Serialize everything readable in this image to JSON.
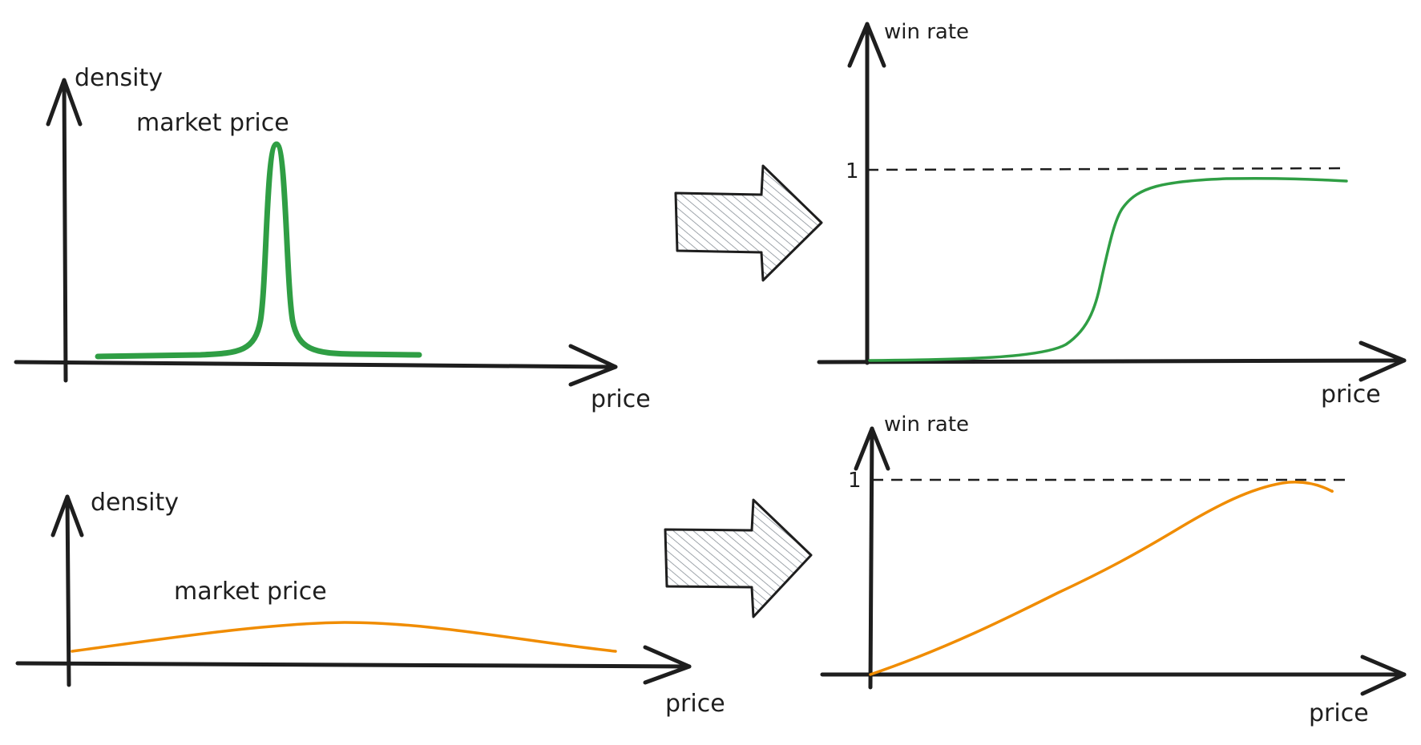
{
  "colors": {
    "green": "#2f9e44",
    "orange": "#f08c00",
    "ink": "#1e1e1e",
    "hatch": "#868e96"
  },
  "icons": {
    "transform_arrow": "block-right-arrow-icon"
  },
  "panels": {
    "top_left": {
      "y_axis_label": "density",
      "x_axis_label": "price",
      "curve_label": "market price"
    },
    "top_right": {
      "y_axis_label": "win rate",
      "x_axis_label": "price",
      "y_tick_label": "1"
    },
    "bottom_left": {
      "y_axis_label": "density",
      "x_axis_label": "price",
      "curve_label": "market price"
    },
    "bottom_right": {
      "y_axis_label": "win rate",
      "x_axis_label": "price",
      "y_tick_label": "1"
    }
  }
}
